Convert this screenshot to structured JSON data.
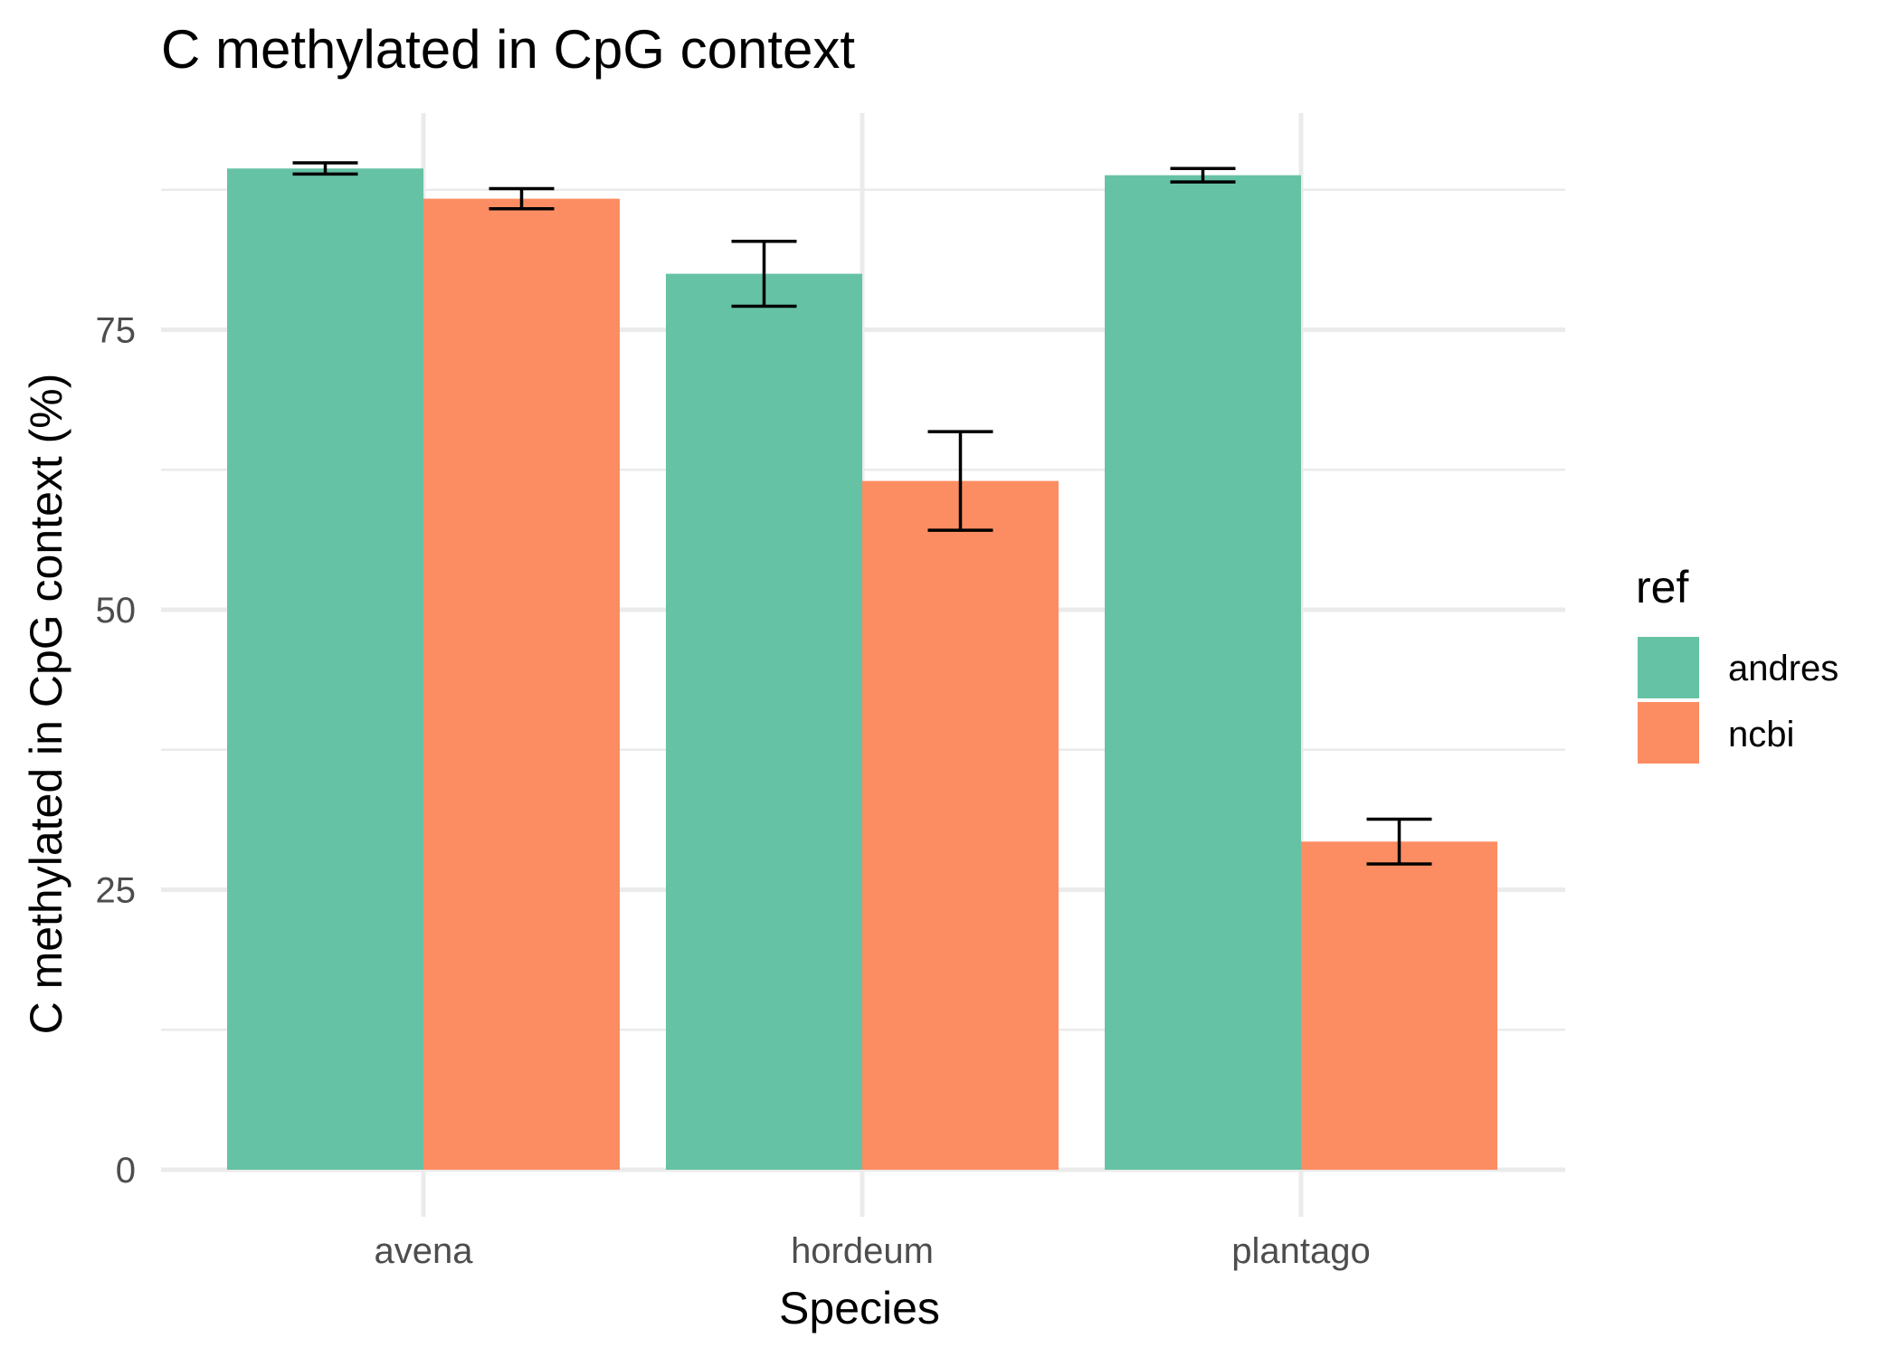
{
  "chart_data": {
    "type": "bar",
    "title": "C methylated in CpG context",
    "xlabel": "Species",
    "ylabel": "C methylated in CpG context (%)",
    "categories": [
      "avena",
      "hordeum",
      "plantago"
    ],
    "ylim": [
      0,
      91
    ],
    "yticks": [
      0,
      25,
      50,
      75
    ],
    "ytick_labels": [
      "0",
      "25",
      "50",
      "75"
    ],
    "grid": true,
    "legend": {
      "title": "ref",
      "position": "right"
    },
    "series": [
      {
        "name": "andres",
        "color": "#66c2a5",
        "values": [
          89.4,
          80.0,
          88.8
        ],
        "error_low": [
          88.9,
          77.1,
          88.2
        ],
        "error_high": [
          89.9,
          82.9,
          89.4
        ]
      },
      {
        "name": "ncbi",
        "color": "#fc8d62",
        "values": [
          86.7,
          61.5,
          29.3
        ],
        "error_low": [
          85.8,
          57.1,
          27.3
        ],
        "error_high": [
          87.6,
          65.9,
          31.3
        ]
      }
    ]
  }
}
